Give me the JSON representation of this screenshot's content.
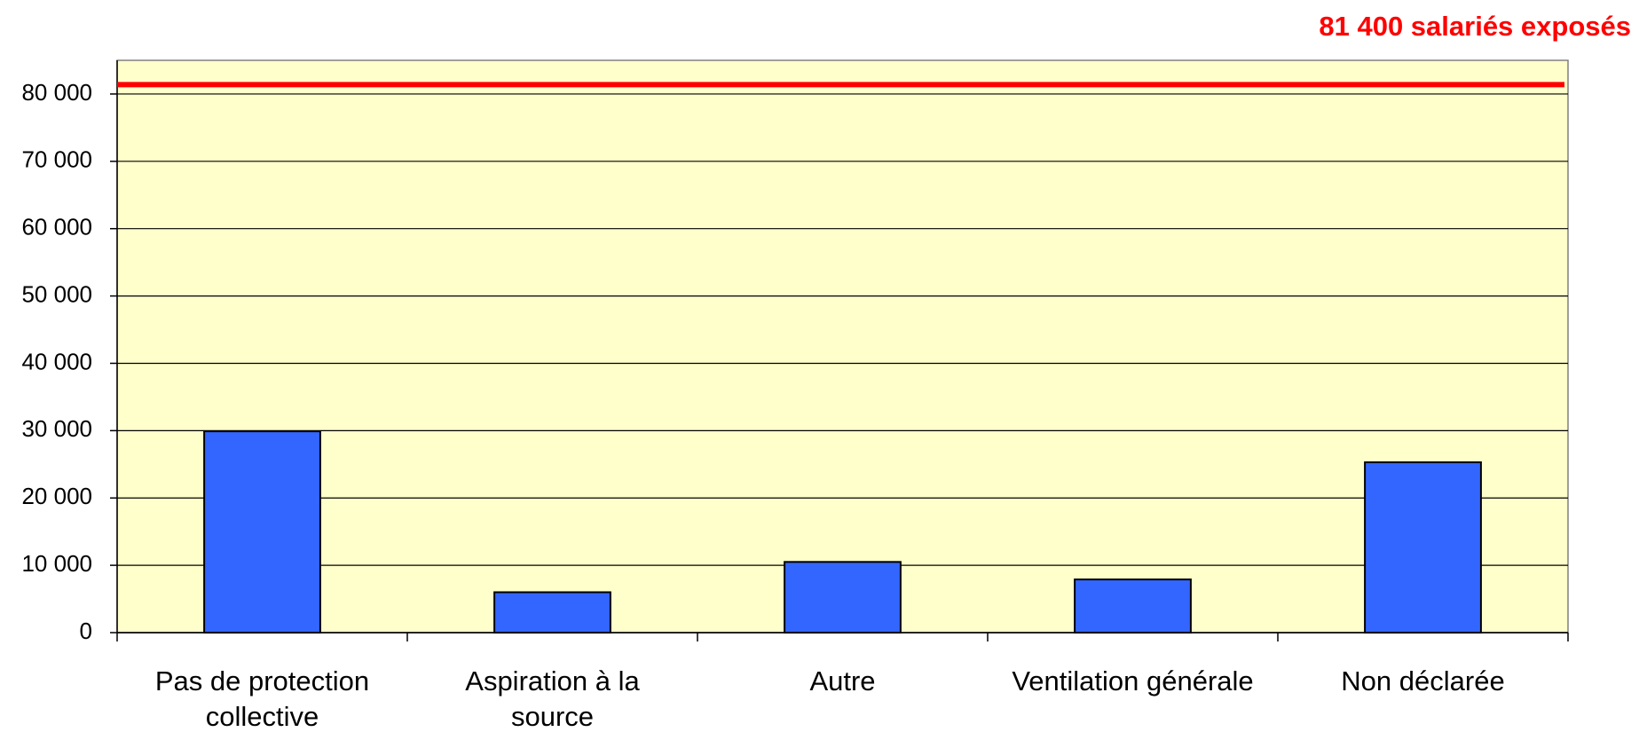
{
  "chart_data": {
    "type": "bar",
    "categories": [
      "Pas de protection collective",
      "Aspiration à la source",
      "Autre",
      "Ventilation générale",
      "Non déclarée"
    ],
    "values": [
      29900,
      6000,
      10500,
      7900,
      25300
    ],
    "color": "#3366ff",
    "ylim": [
      0,
      85000
    ],
    "yticks": [
      0,
      {
        "value": 10000,
        "label": "10 000"
      },
      {
        "value": 20000,
        "label": "20 000"
      },
      {
        "value": 30000,
        "label": "30 000"
      },
      {
        "value": 40000,
        "label": "40 000"
      },
      {
        "value": 50000,
        "label": "50 000"
      },
      {
        "value": 60000,
        "label": "60 000"
      },
      {
        "value": 70000,
        "label": "70 000"
      },
      {
        "value": 80000,
        "label": "80 000"
      }
    ],
    "grid": true,
    "reference_line": {
      "value": 81400,
      "label": "81 400 salariés exposés",
      "color": "#ff0000"
    }
  }
}
